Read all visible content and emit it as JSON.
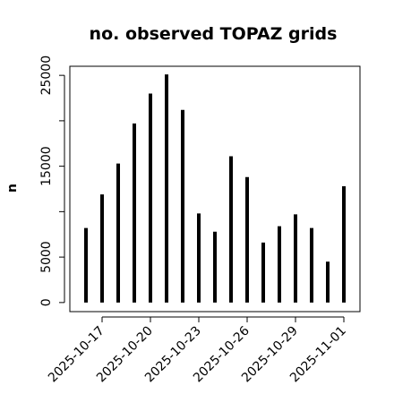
{
  "chart_data": {
    "type": "bar",
    "title": "no. observed TOPAZ grids",
    "xlabel": "",
    "ylabel": "n",
    "x_dates": [
      "2025-10-16",
      "2025-10-17",
      "2025-10-18",
      "2025-10-19",
      "2025-10-20",
      "2025-10-21",
      "2025-10-22",
      "2025-10-23",
      "2025-10-24",
      "2025-10-25",
      "2025-10-26",
      "2025-10-27",
      "2025-10-28",
      "2025-10-29",
      "2025-10-30",
      "2025-10-31",
      "2025-11-01"
    ],
    "values": [
      8200,
      11900,
      15300,
      19700,
      23000,
      25100,
      21200,
      9800,
      7800,
      16100,
      13800,
      6600,
      8400,
      9700,
      8200,
      4500,
      12800
    ],
    "xlim": [
      "2025-10-15",
      "2025-11-02"
    ],
    "ylim": [
      -1000,
      26000
    ],
    "yticks": [
      0,
      5000,
      10000,
      15000,
      20000,
      25000
    ],
    "ytick_labels": [
      "0",
      "5000",
      "",
      "15000",
      "",
      "25000"
    ],
    "xticks": [
      "2025-10-17",
      "2025-10-20",
      "2025-10-23",
      "2025-10-26",
      "2025-10-29",
      "2025-11-01"
    ],
    "xtick_labels": [
      "2025-10-17",
      "2025-10-20",
      "2025-10-23",
      "2025-10-26",
      "2025-10-29",
      "2025-11-01"
    ],
    "highlight_tick": "2025-10-23",
    "colors": {
      "bars": "#000000",
      "axis": "#000000",
      "highlight_tick": "#228B22"
    },
    "grid": false,
    "legend": "none"
  }
}
